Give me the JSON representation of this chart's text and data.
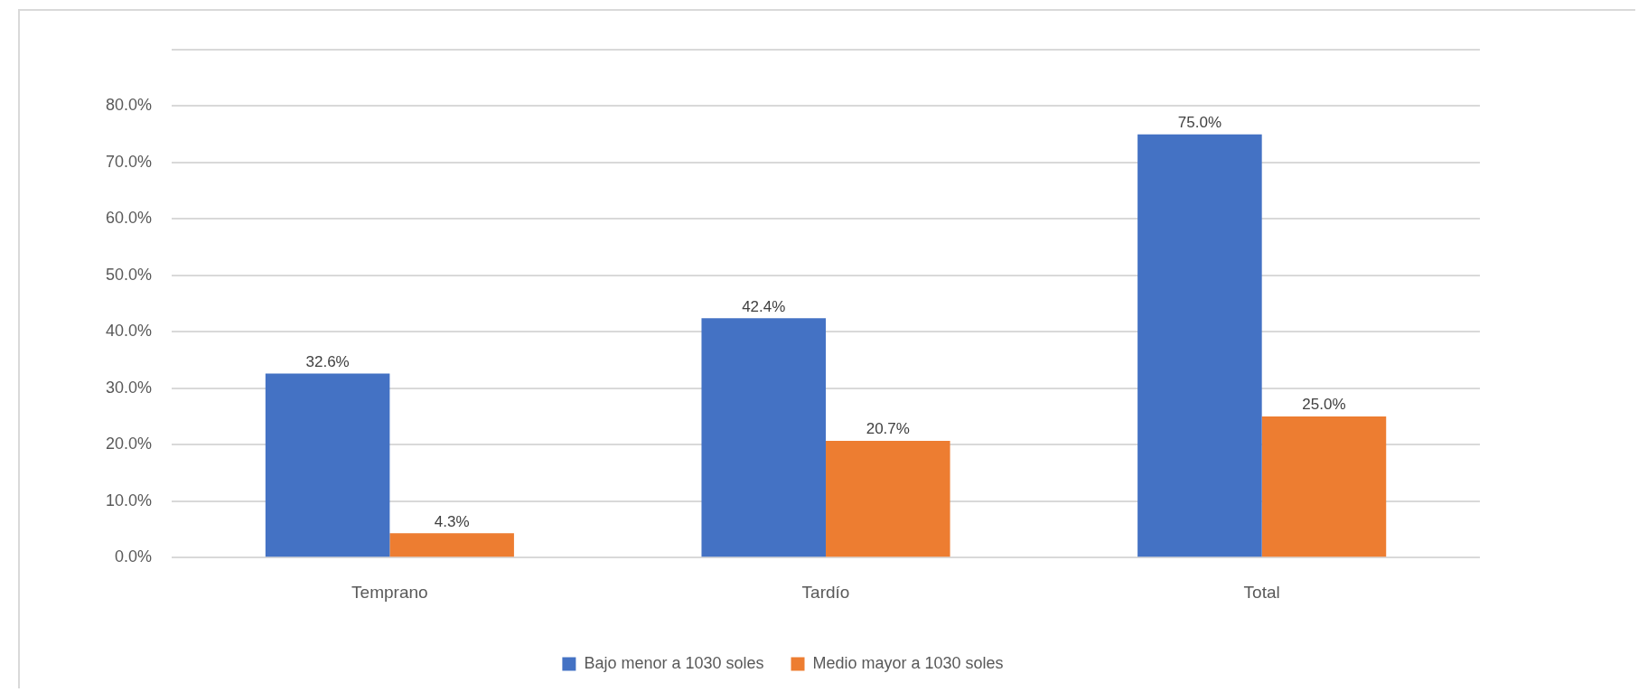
{
  "chart_data": {
    "type": "bar",
    "categories": [
      "Temprano",
      "Tardío",
      "Total"
    ],
    "series": [
      {
        "name": "Bajo menor a 1030 soles",
        "color": "#4472c4",
        "values": [
          32.6,
          42.4,
          75.0
        ],
        "value_labels": [
          "32.6%",
          "42.4%",
          "75.0%"
        ]
      },
      {
        "name": "Medio mayor a 1030 soles",
        "color": "#ed7d31",
        "values": [
          4.3,
          20.7,
          25.0
        ],
        "value_labels": [
          "4.3%",
          "20.7%",
          "25.0%"
        ]
      }
    ],
    "ylim": [
      0,
      90
    ],
    "yticks": [
      {
        "value": 0,
        "label": "0.0%"
      },
      {
        "value": 10,
        "label": "10.0%"
      },
      {
        "value": 20,
        "label": "20.0%"
      },
      {
        "value": 30,
        "label": "30.0%"
      },
      {
        "value": 40,
        "label": "40.0%"
      },
      {
        "value": 50,
        "label": "50.0%"
      },
      {
        "value": 60,
        "label": "60.0%"
      },
      {
        "value": 70,
        "label": "70.0%"
      },
      {
        "value": 80,
        "label": "80.0%"
      },
      {
        "value": 90,
        "label": null
      }
    ],
    "grid": "y",
    "legend": "bottom"
  }
}
